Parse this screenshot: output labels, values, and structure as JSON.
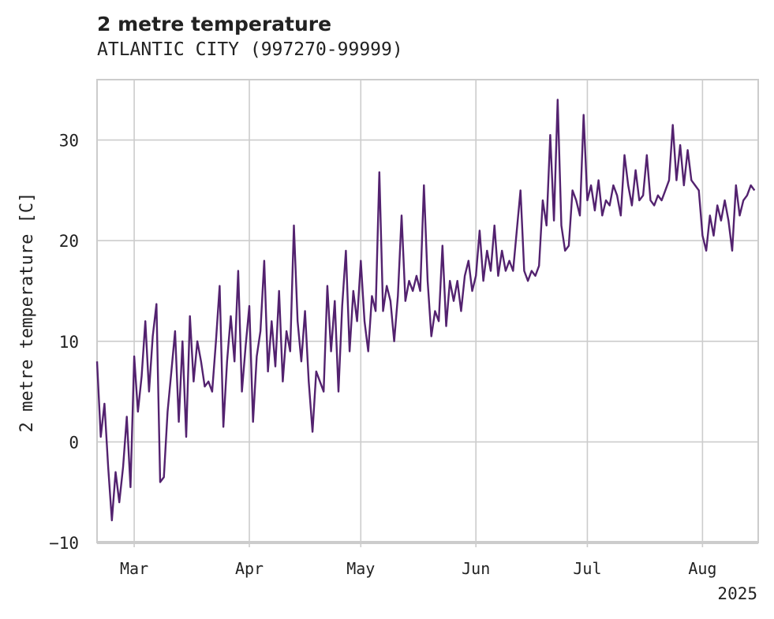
{
  "header": {
    "title": "2 metre temperature",
    "subtitle": "ATLANTIC CITY (997270-99999)"
  },
  "chart_data": {
    "type": "line",
    "title": "2 metre temperature",
    "subtitle": "ATLANTIC CITY (997270-99999)",
    "xlabel": "",
    "ylabel": "2 metre temperature [C]",
    "x_range": [
      "2025-02-19",
      "2025-08-16"
    ],
    "year_label": "2025",
    "ylim": [
      -10,
      36
    ],
    "yticks": [
      -10,
      0,
      10,
      20,
      30
    ],
    "ytick_labels": [
      "−10",
      "0",
      "10",
      "20",
      "30"
    ],
    "xticks": [
      {
        "date": "2025-03-01",
        "label": "Mar"
      },
      {
        "date": "2025-04-01",
        "label": "Apr"
      },
      {
        "date": "2025-05-01",
        "label": "May"
      },
      {
        "date": "2025-06-01",
        "label": "Jun"
      },
      {
        "date": "2025-07-01",
        "label": "Jul"
      },
      {
        "date": "2025-08-01",
        "label": "Aug"
      }
    ],
    "grid": true,
    "line_color": "#53226f",
    "series": [
      {
        "points": [
          [
            "2025-02-19",
            8.0
          ],
          [
            "2025-02-20",
            0.5
          ],
          [
            "2025-02-21",
            3.8
          ],
          [
            "2025-02-22",
            -2.5
          ],
          [
            "2025-02-23",
            -7.8
          ],
          [
            "2025-02-24",
            -3.0
          ],
          [
            "2025-02-25",
            -6.0
          ],
          [
            "2025-02-26",
            -2.5
          ],
          [
            "2025-02-27",
            2.5
          ],
          [
            "2025-02-28",
            -4.5
          ],
          [
            "2025-03-01",
            8.5
          ],
          [
            "2025-03-02",
            3.0
          ],
          [
            "2025-03-03",
            6.5
          ],
          [
            "2025-03-04",
            12.0
          ],
          [
            "2025-03-05",
            5.0
          ],
          [
            "2025-03-06",
            10.5
          ],
          [
            "2025-03-07",
            13.7
          ],
          [
            "2025-03-08",
            -4.0
          ],
          [
            "2025-03-09",
            -3.5
          ],
          [
            "2025-03-10",
            3.0
          ],
          [
            "2025-03-11",
            7.0
          ],
          [
            "2025-03-12",
            11.0
          ],
          [
            "2025-03-13",
            2.0
          ],
          [
            "2025-03-14",
            10.0
          ],
          [
            "2025-03-15",
            0.5
          ],
          [
            "2025-03-16",
            12.5
          ],
          [
            "2025-03-17",
            6.0
          ],
          [
            "2025-03-18",
            10.0
          ],
          [
            "2025-03-19",
            8.0
          ],
          [
            "2025-03-20",
            5.5
          ],
          [
            "2025-03-21",
            6.0
          ],
          [
            "2025-03-22",
            5.0
          ],
          [
            "2025-03-23",
            10.0
          ],
          [
            "2025-03-24",
            15.5
          ],
          [
            "2025-03-25",
            1.5
          ],
          [
            "2025-03-26",
            8.0
          ],
          [
            "2025-03-27",
            12.5
          ],
          [
            "2025-03-28",
            8.0
          ],
          [
            "2025-03-29",
            17.0
          ],
          [
            "2025-03-30",
            5.0
          ],
          [
            "2025-03-31",
            9.5
          ],
          [
            "2025-04-01",
            13.5
          ],
          [
            "2025-04-02",
            2.0
          ],
          [
            "2025-04-03",
            8.5
          ],
          [
            "2025-04-04",
            11.0
          ],
          [
            "2025-04-05",
            18.0
          ],
          [
            "2025-04-06",
            7.0
          ],
          [
            "2025-04-07",
            12.0
          ],
          [
            "2025-04-08",
            7.5
          ],
          [
            "2025-04-09",
            15.0
          ],
          [
            "2025-04-10",
            6.0
          ],
          [
            "2025-04-11",
            11.0
          ],
          [
            "2025-04-12",
            9.0
          ],
          [
            "2025-04-13",
            21.5
          ],
          [
            "2025-04-14",
            12.0
          ],
          [
            "2025-04-15",
            8.0
          ],
          [
            "2025-04-16",
            13.0
          ],
          [
            "2025-04-17",
            6.0
          ],
          [
            "2025-04-18",
            1.0
          ],
          [
            "2025-04-19",
            7.0
          ],
          [
            "2025-04-20",
            6.0
          ],
          [
            "2025-04-21",
            5.0
          ],
          [
            "2025-04-22",
            15.5
          ],
          [
            "2025-04-23",
            9.0
          ],
          [
            "2025-04-24",
            14.0
          ],
          [
            "2025-04-25",
            5.0
          ],
          [
            "2025-04-26",
            13.5
          ],
          [
            "2025-04-27",
            19.0
          ],
          [
            "2025-04-28",
            9.0
          ],
          [
            "2025-04-29",
            15.0
          ],
          [
            "2025-04-30",
            12.0
          ],
          [
            "2025-05-01",
            18.0
          ],
          [
            "2025-05-02",
            12.0
          ],
          [
            "2025-05-03",
            9.0
          ],
          [
            "2025-05-04",
            14.5
          ],
          [
            "2025-05-05",
            13.0
          ],
          [
            "2025-05-06",
            26.8
          ],
          [
            "2025-05-07",
            13.0
          ],
          [
            "2025-05-08",
            15.5
          ],
          [
            "2025-05-09",
            14.0
          ],
          [
            "2025-05-10",
            10.0
          ],
          [
            "2025-05-11",
            14.5
          ],
          [
            "2025-05-12",
            22.5
          ],
          [
            "2025-05-13",
            14.0
          ],
          [
            "2025-05-14",
            16.0
          ],
          [
            "2025-05-15",
            15.0
          ],
          [
            "2025-05-16",
            16.5
          ],
          [
            "2025-05-17",
            15.0
          ],
          [
            "2025-05-18",
            25.5
          ],
          [
            "2025-05-19",
            16.0
          ],
          [
            "2025-05-20",
            10.5
          ],
          [
            "2025-05-21",
            13.0
          ],
          [
            "2025-05-22",
            12.0
          ],
          [
            "2025-05-23",
            19.5
          ],
          [
            "2025-05-24",
            11.5
          ],
          [
            "2025-05-25",
            16.0
          ],
          [
            "2025-05-26",
            14.0
          ],
          [
            "2025-05-27",
            16.0
          ],
          [
            "2025-05-28",
            13.0
          ],
          [
            "2025-05-29",
            16.5
          ],
          [
            "2025-05-30",
            18.0
          ],
          [
            "2025-05-31",
            15.0
          ],
          [
            "2025-06-01",
            16.5
          ],
          [
            "2025-06-02",
            21.0
          ],
          [
            "2025-06-03",
            16.0
          ],
          [
            "2025-06-04",
            19.0
          ],
          [
            "2025-06-05",
            17.0
          ],
          [
            "2025-06-06",
            21.5
          ],
          [
            "2025-06-07",
            16.5
          ],
          [
            "2025-06-08",
            19.0
          ],
          [
            "2025-06-09",
            17.0
          ],
          [
            "2025-06-10",
            18.0
          ],
          [
            "2025-06-11",
            17.0
          ],
          [
            "2025-06-12",
            21.0
          ],
          [
            "2025-06-13",
            25.0
          ],
          [
            "2025-06-14",
            17.0
          ],
          [
            "2025-06-15",
            16.0
          ],
          [
            "2025-06-16",
            17.0
          ],
          [
            "2025-06-17",
            16.5
          ],
          [
            "2025-06-18",
            17.5
          ],
          [
            "2025-06-19",
            24.0
          ],
          [
            "2025-06-20",
            21.5
          ],
          [
            "2025-06-21",
            30.5
          ],
          [
            "2025-06-22",
            22.0
          ],
          [
            "2025-06-23",
            34.0
          ],
          [
            "2025-06-24",
            21.5
          ],
          [
            "2025-06-25",
            19.0
          ],
          [
            "2025-06-26",
            19.5
          ],
          [
            "2025-06-27",
            25.0
          ],
          [
            "2025-06-28",
            24.0
          ],
          [
            "2025-06-29",
            22.5
          ],
          [
            "2025-06-30",
            32.5
          ],
          [
            "2025-07-01",
            24.0
          ],
          [
            "2025-07-02",
            25.5
          ],
          [
            "2025-07-03",
            23.0
          ],
          [
            "2025-07-04",
            26.0
          ],
          [
            "2025-07-05",
            22.5
          ],
          [
            "2025-07-06",
            24.0
          ],
          [
            "2025-07-07",
            23.5
          ],
          [
            "2025-07-08",
            25.5
          ],
          [
            "2025-07-09",
            24.5
          ],
          [
            "2025-07-10",
            22.5
          ],
          [
            "2025-07-11",
            28.5
          ],
          [
            "2025-07-12",
            25.5
          ],
          [
            "2025-07-13",
            23.5
          ],
          [
            "2025-07-14",
            27.0
          ],
          [
            "2025-07-15",
            24.0
          ],
          [
            "2025-07-16",
            24.5
          ],
          [
            "2025-07-17",
            28.5
          ],
          [
            "2025-07-18",
            24.0
          ],
          [
            "2025-07-19",
            23.5
          ],
          [
            "2025-07-20",
            24.5
          ],
          [
            "2025-07-21",
            24.0
          ],
          [
            "2025-07-22",
            25.0
          ],
          [
            "2025-07-23",
            26.0
          ],
          [
            "2025-07-24",
            31.5
          ],
          [
            "2025-07-25",
            26.0
          ],
          [
            "2025-07-26",
            29.5
          ],
          [
            "2025-07-27",
            25.5
          ],
          [
            "2025-07-28",
            29.0
          ],
          [
            "2025-07-29",
            26.0
          ],
          [
            "2025-07-30",
            25.5
          ],
          [
            "2025-07-31",
            25.0
          ],
          [
            "2025-08-01",
            20.5
          ],
          [
            "2025-08-02",
            19.0
          ],
          [
            "2025-08-03",
            22.5
          ],
          [
            "2025-08-04",
            20.5
          ],
          [
            "2025-08-05",
            23.5
          ],
          [
            "2025-08-06",
            22.0
          ],
          [
            "2025-08-07",
            24.0
          ],
          [
            "2025-08-08",
            22.0
          ],
          [
            "2025-08-09",
            19.0
          ],
          [
            "2025-08-10",
            25.5
          ],
          [
            "2025-08-11",
            22.5
          ],
          [
            "2025-08-12",
            24.0
          ],
          [
            "2025-08-13",
            24.5
          ],
          [
            "2025-08-14",
            25.5
          ],
          [
            "2025-08-15",
            25.0
          ]
        ]
      }
    ]
  }
}
